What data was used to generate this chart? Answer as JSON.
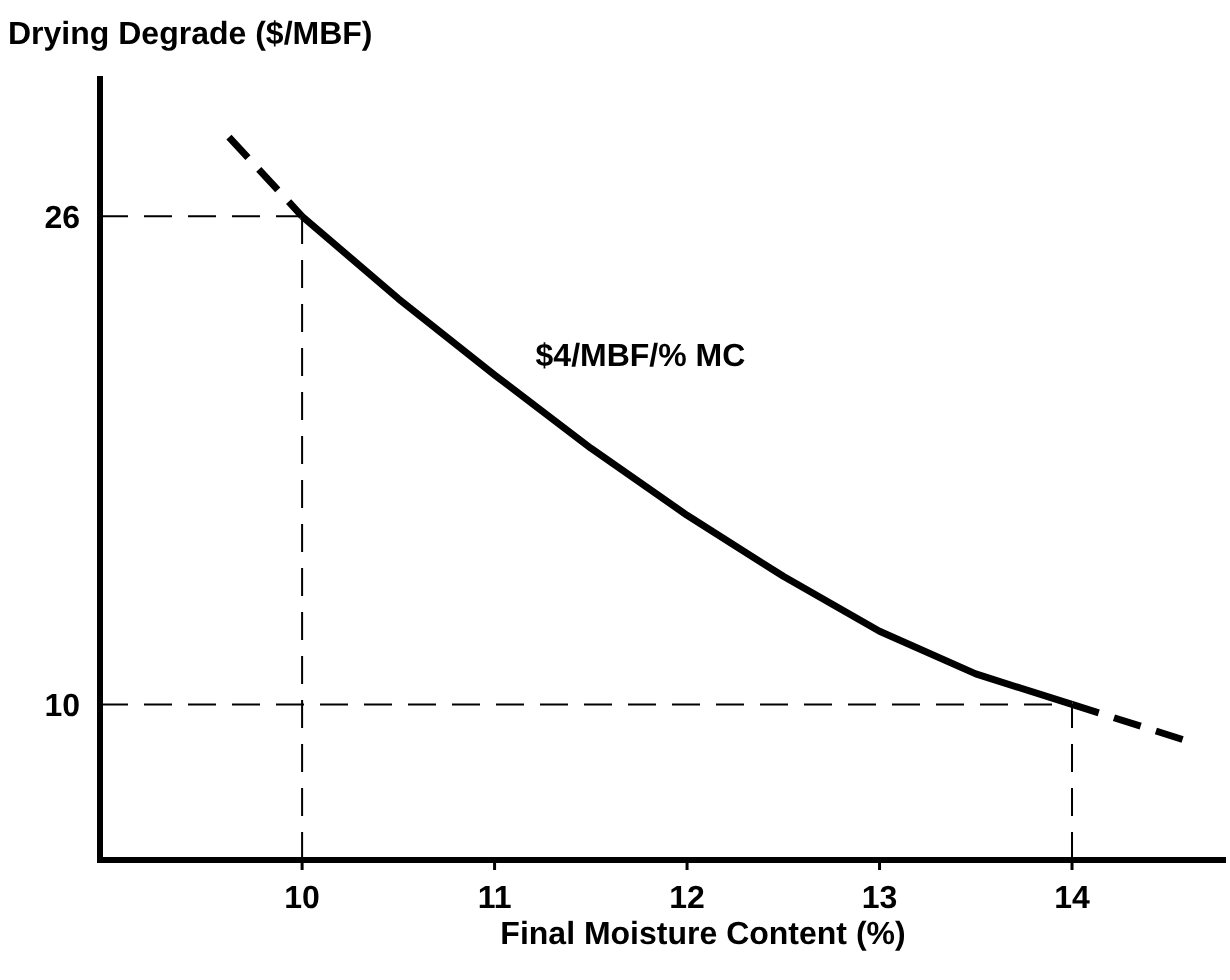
{
  "chart_data": {
    "type": "line",
    "xlabel": "Final Moisture Content (%)",
    "ylabel": "Drying Degrade ($/MBF)",
    "xlim": [
      8.95,
      14.8
    ],
    "ylim": [
      4.9,
      30.6
    ],
    "xticks": [
      10,
      11,
      12,
      13,
      14
    ],
    "yticks": [
      10,
      26
    ],
    "grid": false,
    "marker": "none",
    "annotations": [
      "$4/MBF/% MC"
    ],
    "ref_lines": [
      {
        "axis": "y",
        "value": 26
      },
      {
        "axis": "x",
        "value": 10
      },
      {
        "axis": "y",
        "value": 10
      },
      {
        "axis": "x",
        "value": 14
      }
    ],
    "series": [
      {
        "color": "#000000",
        "line_style": "solid",
        "x": [
          10,
          10.5,
          11,
          11.5,
          12,
          12.5,
          13,
          13.5,
          14
        ],
        "values": [
          26,
          23.3,
          20.8,
          18.4,
          16.2,
          14.2,
          12.4,
          11,
          10
        ]
      },
      {
        "color": "#000000",
        "line_style": "dashed",
        "x": [
          9.62,
          10
        ],
        "values": [
          28.6,
          26
        ]
      },
      {
        "color": "#000000",
        "line_style": "dashed",
        "x": [
          14,
          14.6
        ],
        "values": [
          10,
          8.8
        ]
      }
    ]
  }
}
